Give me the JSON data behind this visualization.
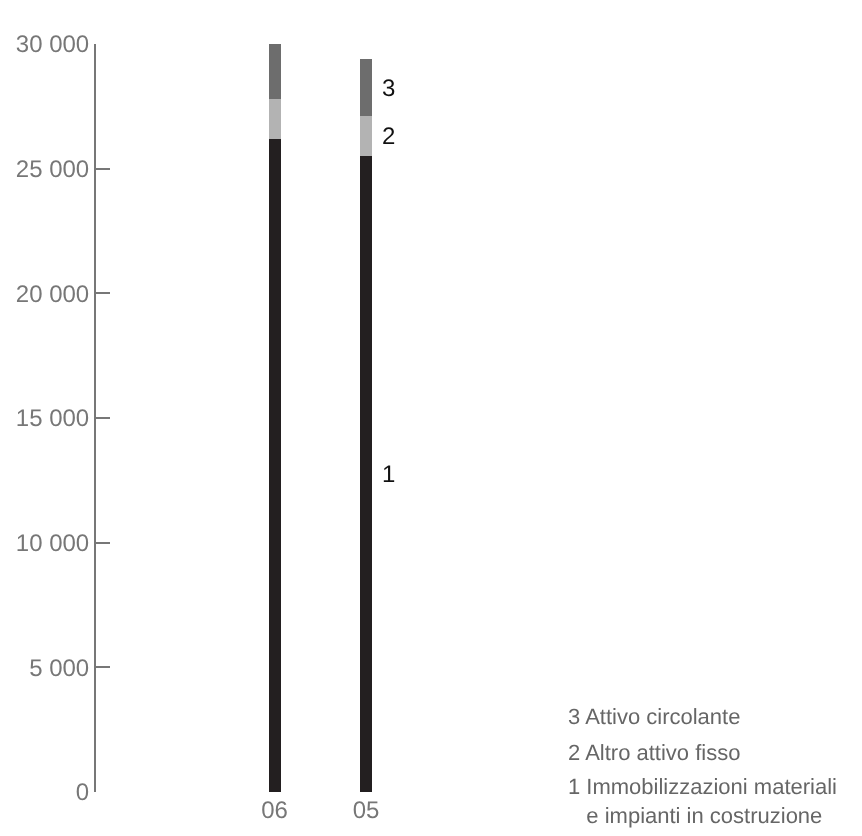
{
  "chart_data": {
    "type": "bar",
    "stacked": true,
    "categories": [
      "06",
      "05"
    ],
    "series": [
      {
        "color": "#231f20",
        "values": [
          26200,
          25500
        ]
      },
      {
        "color": "#b3b3b3",
        "values": [
          1600,
          1600
        ]
      },
      {
        "color": "#6d6d6d",
        "values": [
          2200,
          2300
        ]
      }
    ],
    "ylim": [
      0,
      30000
    ],
    "yticks": [
      {
        "value": 0,
        "label": "0"
      },
      {
        "value": 5000,
        "label": "5 000"
      },
      {
        "value": 10000,
        "label": "10 000"
      },
      {
        "value": 15000,
        "label": "15 000"
      },
      {
        "value": 20000,
        "label": "20 000"
      },
      {
        "value": 25000,
        "label": "25 000"
      },
      {
        "value": 30000,
        "label": "30 000"
      }
    ],
    "annotations": [
      {
        "text": "3",
        "x": "05",
        "y": 28250
      },
      {
        "text": "2",
        "x": "05",
        "y": 26300
      },
      {
        "text": "1",
        "x": "05",
        "y": 12750
      },
      "3 Attivo circolante",
      "2 Altro attivo fisso",
      "1 Immobilizzazioni materiali\n   e impianti in costruzione"
    ]
  }
}
